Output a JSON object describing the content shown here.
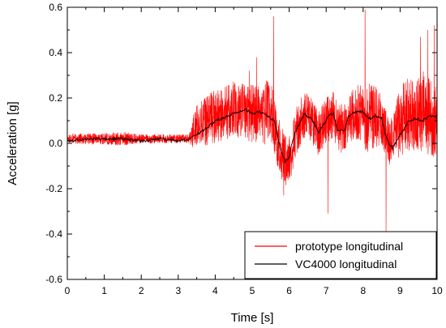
{
  "chart_data": {
    "type": "line",
    "title": "",
    "xlabel": "Time [s]",
    "ylabel": "Acceleration [g]",
    "xlim": [
      0,
      10
    ],
    "ylim": [
      -0.6,
      0.6
    ],
    "xticks": [
      "0",
      "1",
      "2",
      "3",
      "4",
      "5",
      "6",
      "7",
      "8",
      "9",
      "10"
    ],
    "yticks": [
      "-0.6",
      "-0.4",
      "-0.2",
      "0.0",
      "0.2",
      "0.4",
      "0.6"
    ],
    "grid": false,
    "legend_position": "bottom-right",
    "series": [
      {
        "name": "prototype longitudinal",
        "color": "#ff0000",
        "x": [
          0.0,
          0.5,
          1.0,
          1.5,
          2.0,
          2.5,
          3.0,
          3.3,
          3.4,
          3.5,
          3.8,
          4.0,
          4.2,
          4.5,
          4.8,
          5.0,
          5.2,
          5.4,
          5.5,
          5.6,
          5.7,
          5.8,
          5.9,
          6.0,
          6.2,
          6.4,
          6.6,
          6.8,
          7.0,
          7.2,
          7.4,
          7.6,
          7.8,
          8.0,
          8.1,
          8.2,
          8.3,
          8.5,
          8.6,
          8.7,
          8.8,
          8.9,
          9.0,
          9.2,
          9.4,
          9.6,
          9.8,
          10.0
        ],
        "y": [
          0.02,
          0.02,
          0.02,
          0.02,
          0.02,
          0.02,
          0.02,
          0.02,
          0.05,
          0.08,
          0.1,
          0.12,
          0.13,
          0.15,
          0.14,
          0.13,
          0.12,
          0.14,
          0.15,
          0.08,
          0.0,
          -0.04,
          -0.08,
          -0.06,
          0.06,
          0.13,
          0.1,
          0.04,
          0.1,
          0.12,
          0.06,
          0.1,
          0.14,
          0.13,
          0.1,
          0.12,
          0.12,
          0.1,
          0.05,
          0.0,
          0.02,
          0.06,
          0.1,
          0.13,
          0.12,
          0.14,
          0.12,
          0.1
        ],
        "amplitude": [
          0.02,
          0.025,
          0.025,
          0.03,
          0.02,
          0.02,
          0.02,
          0.02,
          0.07,
          0.09,
          0.11,
          0.12,
          0.12,
          0.13,
          0.12,
          0.13,
          0.13,
          0.15,
          0.14,
          0.12,
          0.12,
          0.12,
          0.12,
          0.12,
          0.11,
          0.11,
          0.1,
          0.1,
          0.1,
          0.11,
          0.11,
          0.11,
          0.12,
          0.13,
          0.15,
          0.15,
          0.14,
          0.12,
          0.1,
          0.1,
          0.1,
          0.13,
          0.16,
          0.16,
          0.17,
          0.18,
          0.18,
          0.16
        ],
        "spikes": [
          [
            5.58,
            0.56
          ],
          [
            8.05,
            0.59
          ],
          [
            8.62,
            -0.39
          ],
          [
            5.85,
            -0.23
          ],
          [
            4.92,
            0.32
          ],
          [
            9.92,
            0.52
          ],
          [
            9.75,
            0.5
          ],
          [
            7.05,
            -0.31
          ],
          [
            5.12,
            0.38
          ],
          [
            9.55,
            0.47
          ]
        ]
      },
      {
        "name": "VC4000 longitudinal",
        "color": "#000000",
        "x": [
          0.0,
          0.5,
          1.0,
          1.5,
          2.0,
          2.5,
          3.0,
          3.3,
          3.5,
          3.8,
          4.0,
          4.2,
          4.5,
          4.8,
          5.0,
          5.2,
          5.4,
          5.6,
          5.7,
          5.8,
          5.9,
          6.0,
          6.1,
          6.2,
          6.4,
          6.6,
          6.8,
          7.0,
          7.1,
          7.2,
          7.3,
          7.5,
          7.6,
          7.8,
          8.0,
          8.1,
          8.2,
          8.3,
          8.4,
          8.5,
          8.6,
          8.7,
          8.8,
          9.0,
          9.1,
          9.2,
          9.3,
          9.4,
          9.6,
          9.8,
          10.0
        ],
        "y": [
          0.01,
          0.02,
          0.02,
          0.02,
          0.01,
          0.02,
          0.01,
          0.02,
          0.04,
          0.07,
          0.1,
          0.11,
          0.13,
          0.15,
          0.13,
          0.14,
          0.12,
          0.1,
          0.02,
          -0.04,
          -0.08,
          -0.06,
          0.02,
          0.06,
          0.13,
          0.11,
          0.05,
          0.1,
          0.13,
          0.13,
          0.06,
          0.06,
          0.12,
          0.14,
          0.14,
          0.12,
          0.11,
          0.12,
          0.12,
          0.11,
          0.04,
          0.0,
          -0.02,
          0.04,
          0.06,
          0.09,
          0.1,
          0.11,
          0.1,
          0.12,
          0.12
        ]
      }
    ]
  }
}
